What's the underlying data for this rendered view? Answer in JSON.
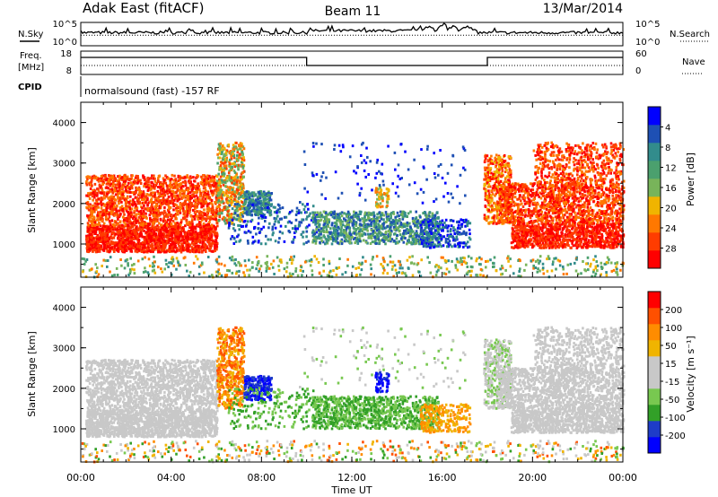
{
  "header": {
    "station": "Adak East (fitACF)",
    "beam": "Beam 11",
    "date": "13/Mar/2014"
  },
  "sky_panel": {
    "left_label": "N.Sky",
    "right_label": "N.Search",
    "ticks_left": [
      "10^5",
      "10^0"
    ],
    "ticks_right": [
      "10^5",
      "10^0"
    ]
  },
  "freq_panel": {
    "left_label_1": "Freq.",
    "left_label_2": "[MHz]",
    "right_label": "Nave",
    "ticks_left": [
      "18",
      "8"
    ],
    "ticks_right": [
      "60",
      "0"
    ]
  },
  "cpid_panel": {
    "label": "CPID",
    "text": "normalsound (fast) -157 RF"
  },
  "colors": {
    "power": [
      "#0000ff",
      "#1e50b4",
      "#328c8c",
      "#4ba06e",
      "#78b45a",
      "#f0b400",
      "#ff7800",
      "#ff3c00",
      "#ff0000"
    ],
    "velocity": [
      "#ff0000",
      "#ff5000",
      "#ff8c00",
      "#f0b400",
      "#c8c8c8",
      "#c8c8c8",
      "#78c850",
      "#32a028",
      "#1e3cc8",
      "#0000ff"
    ]
  },
  "chart_data": [
    {
      "type": "heatmap",
      "title": "Power",
      "xlabel": "Time UT",
      "ylabel": "Slant Range [km]",
      "colorbar_label": "Power [dB]",
      "x_ticks": [
        "00:00",
        "04:00",
        "08:00",
        "12:00",
        "16:00",
        "20:00",
        "00:00"
      ],
      "y_ticks": [
        "1000",
        "2000",
        "3000",
        "4000"
      ],
      "colorbar_ticks": [
        "4",
        "8",
        "12",
        "16",
        "20",
        "24",
        "28"
      ],
      "xlim": [
        0,
        24
      ],
      "ylim": [
        180,
        4500
      ],
      "clim": [
        0,
        32
      ]
    },
    {
      "type": "heatmap",
      "title": "Velocity",
      "xlabel": "Time UT",
      "ylabel": "Slant Range [km]",
      "colorbar_label": "Velocity [m s⁻¹]",
      "x_ticks": [
        "00:00",
        "04:00",
        "08:00",
        "12:00",
        "16:00",
        "20:00",
        "00:00"
      ],
      "y_ticks": [
        "1000",
        "2000",
        "3000",
        "4000"
      ],
      "colorbar_ticks": [
        "200",
        "100",
        "50",
        "15",
        "-15",
        "-50",
        "-100",
        "-200"
      ],
      "xlim": [
        0,
        24
      ],
      "ylim": [
        180,
        4500
      ],
      "clim": [
        -250,
        250
      ]
    }
  ]
}
